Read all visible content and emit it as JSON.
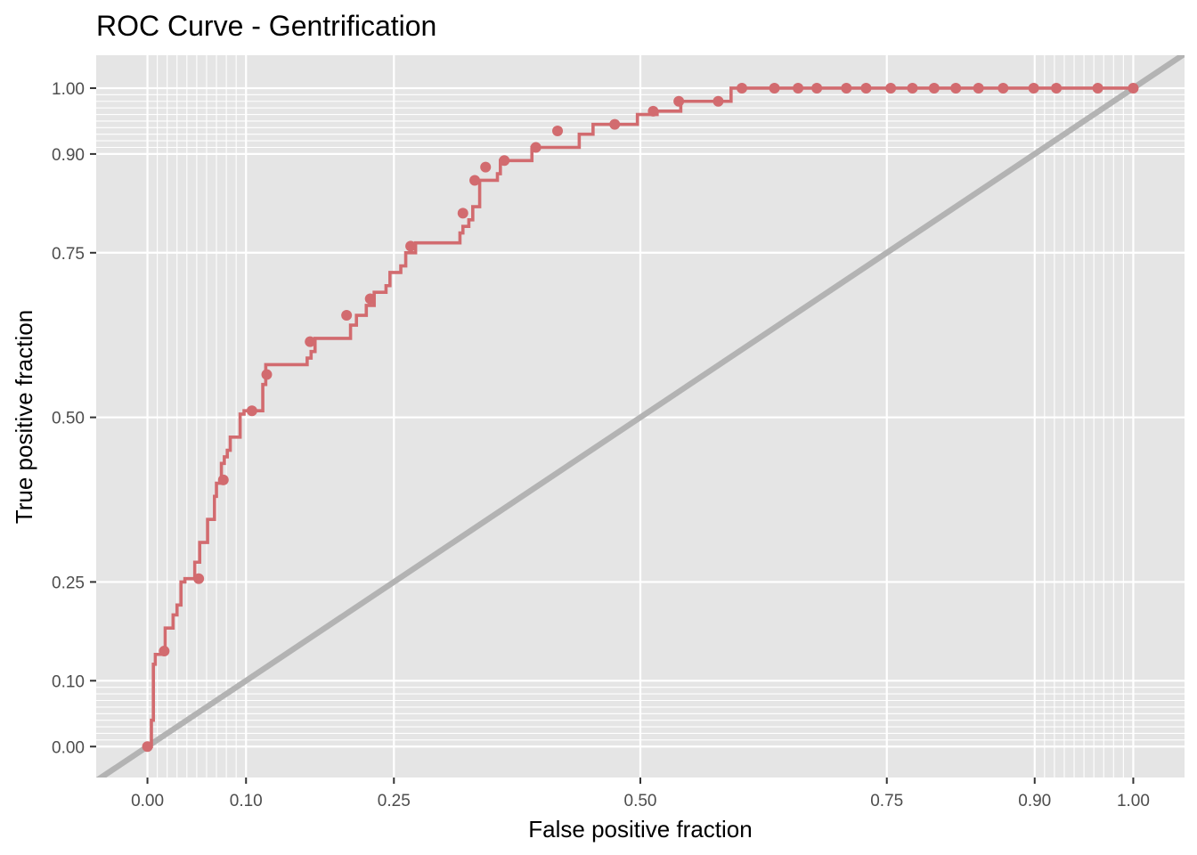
{
  "chart_data": {
    "type": "line",
    "title": "ROC Curve - Gentrification",
    "xlabel": "False positive fraction",
    "ylabel": "True positive fraction",
    "x_ticks": [
      0.0,
      0.1,
      0.25,
      0.5,
      0.75,
      0.9,
      1.0
    ],
    "x_tick_labels": [
      "0.00",
      "0.10",
      "0.25",
      "0.50",
      "0.75",
      "0.90",
      "1.00"
    ],
    "y_ticks": [
      0.0,
      0.1,
      0.25,
      0.5,
      0.75,
      0.9,
      1.0
    ],
    "y_tick_labels": [
      "0.00",
      "0.10",
      "0.25",
      "0.50",
      "0.75",
      "0.90",
      "1.00"
    ],
    "xlim": [
      -0.052,
      1.052
    ],
    "ylim": [
      -0.047,
      1.05
    ],
    "grid": true,
    "minor_grid_values": [
      0.01,
      0.02,
      0.03,
      0.04,
      0.05,
      0.06,
      0.07,
      0.08,
      0.09,
      0.91,
      0.92,
      0.93,
      0.94,
      0.95,
      0.96,
      0.97,
      0.98,
      0.99
    ],
    "colors": {
      "roc": "#d26b6f",
      "reference": "#b3b3b3",
      "panel": "#e5e5e5",
      "grid": "#ffffff"
    },
    "series": [
      {
        "name": "",
        "style": "step",
        "x": [
          0.0,
          0.004,
          0.006,
          0.008,
          0.012,
          0.018,
          0.023,
          0.026,
          0.03,
          0.034,
          0.038,
          0.043,
          0.048,
          0.053,
          0.057,
          0.061,
          0.065,
          0.068,
          0.07,
          0.073,
          0.075,
          0.078,
          0.081,
          0.084,
          0.087,
          0.09,
          0.094,
          0.098,
          0.104,
          0.11,
          0.117,
          0.12,
          0.126,
          0.142,
          0.162,
          0.166,
          0.17,
          0.182,
          0.202,
          0.206,
          0.212,
          0.222,
          0.23,
          0.242,
          0.246,
          0.257,
          0.262,
          0.272,
          0.294,
          0.312,
          0.317,
          0.32,
          0.326,
          0.33,
          0.337,
          0.352,
          0.355,
          0.358,
          0.372,
          0.387,
          0.39,
          0.407,
          0.432,
          0.438,
          0.452,
          0.476,
          0.497,
          0.517,
          0.541,
          0.562,
          0.577,
          0.592,
          0.613,
          0.634,
          0.655,
          0.677,
          0.7,
          0.721,
          0.743,
          0.764,
          0.785,
          0.806,
          0.828,
          0.849,
          0.871,
          0.892,
          0.914,
          0.935,
          0.956,
          1.0
        ],
        "y": [
          0.0,
          0.04,
          0.125,
          0.14,
          0.14,
          0.18,
          0.18,
          0.2,
          0.215,
          0.25,
          0.255,
          0.255,
          0.28,
          0.31,
          0.31,
          0.345,
          0.345,
          0.38,
          0.4,
          0.4,
          0.43,
          0.44,
          0.45,
          0.47,
          0.47,
          0.47,
          0.505,
          0.51,
          0.51,
          0.51,
          0.55,
          0.58,
          0.58,
          0.58,
          0.59,
          0.6,
          0.62,
          0.62,
          0.62,
          0.64,
          0.655,
          0.67,
          0.69,
          0.7,
          0.72,
          0.73,
          0.75,
          0.765,
          0.765,
          0.765,
          0.78,
          0.79,
          0.8,
          0.82,
          0.86,
          0.86,
          0.87,
          0.89,
          0.89,
          0.89,
          0.91,
          0.91,
          0.91,
          0.93,
          0.945,
          0.945,
          0.96,
          0.965,
          0.98,
          0.98,
          0.98,
          1.0,
          1.0,
          1.0,
          1.0,
          1.0,
          1.0,
          1.0,
          1.0,
          1.0,
          1.0,
          1.0,
          1.0,
          1.0,
          1.0,
          1.0,
          1.0,
          1.0,
          1.0,
          1.0
        ]
      },
      {
        "name": "",
        "style": "line",
        "x": [
          -0.052,
          1.052
        ],
        "y": [
          -0.052,
          1.052
        ]
      }
    ],
    "points": {
      "x": [
        0.0,
        0.017,
        0.052,
        0.077,
        0.106,
        0.121,
        0.165,
        0.202,
        0.226,
        0.267,
        0.32,
        0.332,
        0.343,
        0.362,
        0.394,
        0.416,
        0.474,
        0.513,
        0.539,
        0.579,
        0.603,
        0.636,
        0.66,
        0.679,
        0.709,
        0.729,
        0.754,
        0.776,
        0.798,
        0.82,
        0.843,
        0.868,
        0.899,
        0.922,
        0.964,
        1.0
      ],
      "y": [
        0.0,
        0.145,
        0.255,
        0.405,
        0.51,
        0.565,
        0.615,
        0.655,
        0.68,
        0.76,
        0.81,
        0.86,
        0.88,
        0.89,
        0.91,
        0.935,
        0.945,
        0.965,
        0.98,
        0.98,
        1.0,
        1.0,
        1.0,
        1.0,
        1.0,
        1.0,
        1.0,
        1.0,
        1.0,
        1.0,
        1.0,
        1.0,
        1.0,
        1.0,
        1.0,
        1.0
      ]
    }
  }
}
